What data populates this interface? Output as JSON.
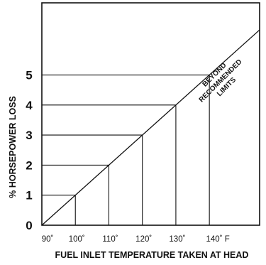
{
  "chart_data": {
    "type": "line",
    "title": "",
    "xlabel": "FUEL INLET TEMPERATURE TAKEN AT HEAD",
    "ylabel": "% HORSEPOWER LOSS",
    "x_tick_labels": [
      "90˚",
      "100˚",
      "110˚",
      "120˚",
      "130˚",
      "140˚ F"
    ],
    "y_tick_labels": [
      "0",
      "1",
      "2",
      "3",
      "4",
      "5"
    ],
    "x": [
      90,
      100,
      110,
      120,
      130,
      140
    ],
    "y": [
      0,
      1,
      2,
      3,
      4,
      5
    ],
    "xlim": [
      90,
      155
    ],
    "ylim": [
      0,
      7.4
    ],
    "grid": false,
    "reference_steps": true,
    "annotation": [
      "BEYOND",
      "RECOMMENDED",
      "LIMITS"
    ]
  }
}
